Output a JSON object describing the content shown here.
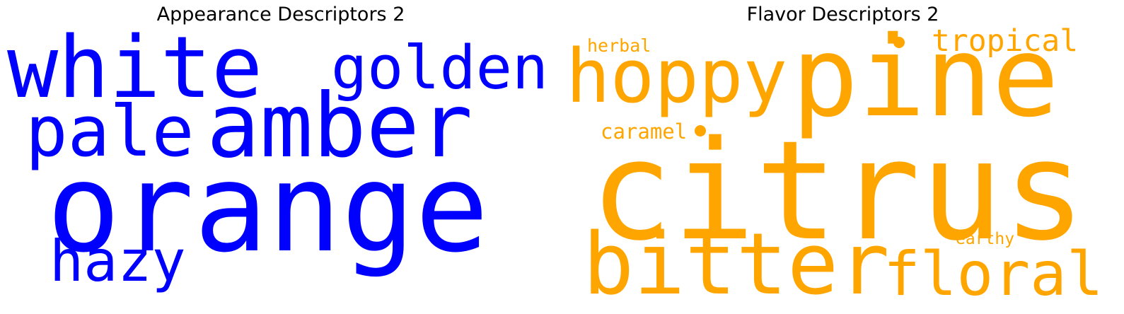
{
  "panels": [
    {
      "title": "Appearance Descriptors 2",
      "color": "#0000ff",
      "words": [
        "white",
        "golden",
        "pale",
        "amber",
        "orange",
        "hazy"
      ]
    },
    {
      "title": "Flavor Descriptors 2",
      "color": "#ffa500",
      "words": [
        "herbal",
        "tropical",
        "hoppy",
        "pine",
        "caramel",
        "citrus",
        "bitter",
        "floral",
        "earthy"
      ]
    }
  ]
}
